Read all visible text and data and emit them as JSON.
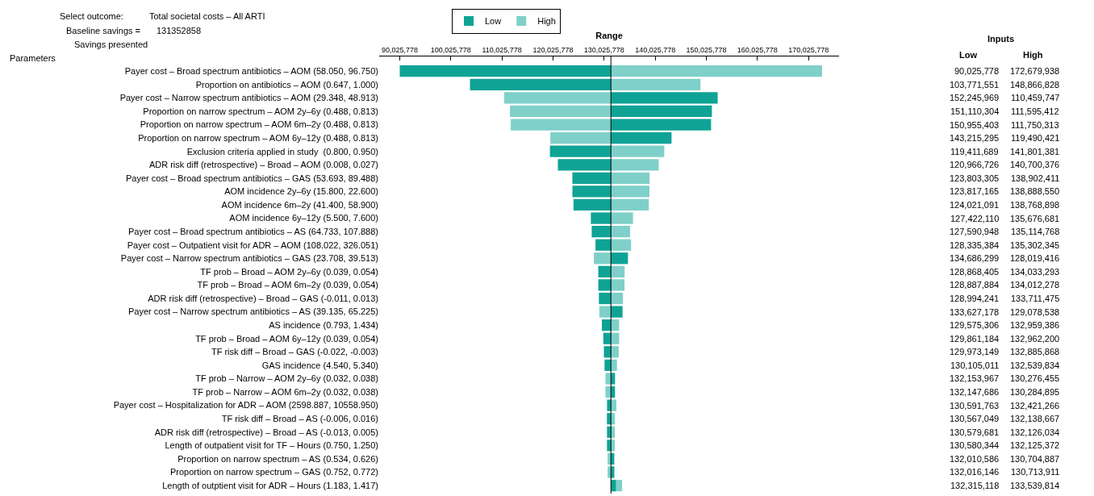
{
  "chart_data": {
    "type": "bar",
    "orientation": "horizontal",
    "xlabel": "Range",
    "legend": "top",
    "grid": false,
    "annotations": [
      "Select outcome:",
      "Total societal costs – All ARTI",
      "Baseline savings =",
      "131352858",
      "Savings presented",
      "Parameters",
      "Inputs",
      "Low",
      "High",
      "90,025,778",
      "172,679,938",
      "103,771,551",
      "148,866,828",
      "152,245,969",
      "110,459,747",
      "151,110,304",
      "111,595,412",
      "150,955,403",
      "111,750,313",
      "143,215,295",
      "119,490,421",
      "119,411,689",
      "141,801,381",
      "120,966,726",
      "140,700,376",
      "123,803,305",
      "138,902,411",
      "123,817,165",
      "138,888,550",
      "124,021,091",
      "138,768,898",
      "127,422,110",
      "135,676,681",
      "127,590,948",
      "135,114,768",
      "128,335,384",
      "135,302,345",
      "134,686,299",
      "128,019,416",
      "128,868,405",
      "134,033,293",
      "128,887,884",
      "134,012,278",
      "128,994,241",
      "133,711,475",
      "133,627,178",
      "129,078,538",
      "129,575,306",
      "132,959,386",
      "129,861,184",
      "132,962,200",
      "129,973,149",
      "132,885,868",
      "130,105,011",
      "132,539,834",
      "132,153,967",
      "130,276,455",
      "132,147,686",
      "130,284,895",
      "130,591,763",
      "132,421,266",
      "130,567,049",
      "132,138,667",
      "130,579,681",
      "132,126,034",
      "130,580,344",
      "132,125,372",
      "132,010,586",
      "130,704,887",
      "132,016,146",
      "130,713,911",
      "132,315,118",
      "133,539,814"
    ],
    "categories": [
      "Payer cost – Broad spectrum antibiotics – AOM (58.050, 96.750)",
      "Proportion on antibiotics – AOM (0.647, 1.000)",
      "Payer cost – Narrow spectrum antibiotics – AOM (29.348, 48.913)",
      "Proportion on narrow spectrum – AOM 2y–6y (0.488, 0.813)",
      "Proportion on narrow spectrum – AOM 6m–2y (0.488, 0.813)",
      "Proportion on narrow spectrum – AOM 6y–12y (0.488, 0.813)",
      "Exclusion criteria applied in study  (0.800, 0.950)",
      "ADR risk diff (retrospective) – Broad – AOM (0.008, 0.027)",
      "Payer cost – Broad spectrum antibiotics – GAS (53.693, 89.488)",
      "AOM incidence 2y–6y (15.800, 22.600)",
      "AOM incidence 6m–2y (41.400, 58.900)",
      "AOM incidence 6y–12y (5.500, 7.600)",
      "Payer cost – Broad spectrum antibiotics – AS (64.733, 107.888)",
      "Payer cost – Outpatient visit for ADR – AOM (108.022, 326.051)",
      "Payer cost – Narrow spectrum antibiotics – GAS (23.708, 39.513)",
      "TF prob – Broad – AOM 2y–6y (0.039, 0.054)",
      "TF prob – Broad – AOM 6m–2y (0.039, 0.054)",
      "ADR risk diff (retrospective) – Broad – GAS (-0.011, 0.013)",
      "Payer cost – Narrow spectrum antibiotics – AS (39.135, 65.225)",
      "AS incidence (0.793, 1.434)",
      "TF prob – Broad – AOM 6y–12y (0.039, 0.054)",
      "TF risk diff – Broad – GAS (-0.022, -0.003)",
      "GAS incidence (4.540, 5.340)",
      "TF prob – Narrow – AOM 2y–6y (0.032, 0.038)",
      "TF prob – Narrow – AOM 6m–2y (0.032, 0.038)",
      "Payer cost – Hospitalization for ADR – AOM (2598.887, 10558.950)",
      "TF risk diff – Broad – AS (-0.006, 0.016)",
      "ADR risk diff (retrospective) – Broad – AS (-0.013, 0.005)",
      "Length of outpatient visit for TF – Hours (0.750, 1.250)",
      "Proportion on narrow spectrum – AS (0.534, 0.626)",
      "Proportion on narrow spectrum – GAS (0.752, 0.772)",
      "Length of outptient visit for ADR – Hours (1.183, 1.417)"
    ],
    "series": [
      {
        "name": "High",
        "color": "#7fd0c9",
        "base": [
          131352858,
          131352858,
          131352858,
          131352858,
          131352858,
          131352858,
          131352858,
          131352858,
          131352858,
          131352858,
          131352858,
          131352858,
          131352858,
          131352858,
          131352858,
          131352858,
          131352858,
          131352858,
          131352858,
          131352858,
          131352858,
          131352858,
          131352858,
          131352858,
          131352858,
          131352858,
          131352858,
          131352858,
          131352858,
          131352858,
          131352858,
          131352858
        ],
        "values": [
          41327080,
          17513970,
          -20893111,
          -19757446,
          -19602545,
          -11862437,
          10448523,
          9347518,
          7549553,
          7535692,
          7416040,
          4323823,
          3761910,
          3949487,
          -3333442,
          2680435,
          2659420,
          2358617,
          -2274320,
          1606528,
          1609342,
          1533010,
          1186976,
          -1076403,
          -1067963,
          1068408,
          785809,
          773176,
          772514,
          -647971,
          -638947,
          2186956
        ]
      },
      {
        "name": "Low",
        "color": "#0fa396",
        "base": [
          131352858,
          131352858,
          131352858,
          131352858,
          131352858,
          131352858,
          131352858,
          131352858,
          131352858,
          131352858,
          131352858,
          131352858,
          131352858,
          131352858,
          131352858,
          131352858,
          131352858,
          131352858,
          131352858,
          131352858,
          131352858,
          131352858,
          131352858,
          131352858,
          131352858,
          131352858,
          131352858,
          131352858,
          131352858,
          131352858,
          131352858,
          131352858
        ],
        "values": [
          -41327080,
          -27581307,
          20893111,
          19757446,
          19602545,
          11862437,
          -11941169,
          -10386132,
          -7549553,
          -7535693,
          -7331767,
          -3930748,
          -3761910,
          -3017474,
          3333441,
          -2484453,
          -2464974,
          -2358617,
          2274320,
          -1777552,
          -1491674,
          -1379709,
          -1247847,
          801109,
          794828,
          -761095,
          -785809,
          -773177,
          -772514,
          657728,
          663288,
          962260
        ]
      }
    ],
    "xlim": [
      86000000,
      176000000
    ],
    "xticks": [
      {
        "value": 90025778,
        "label": "90,025,778"
      },
      {
        "value": 100025778,
        "label": "100,025,778"
      },
      {
        "value": 110025778,
        "label": "110,025,778"
      },
      {
        "value": 120025778,
        "label": "120,025,778"
      },
      {
        "value": 130025778,
        "label": "130,025,778"
      },
      {
        "value": 140025778,
        "label": "140,025,778"
      },
      {
        "value": 150025778,
        "label": "150,025,778"
      },
      {
        "value": 160025778,
        "label": "160,025,778"
      },
      {
        "value": 170025778,
        "label": "170,025,778"
      }
    ],
    "ref_lines": [
      {
        "axis": "x",
        "value": 131352858,
        "label": null,
        "color": "#000000"
      }
    ]
  }
}
